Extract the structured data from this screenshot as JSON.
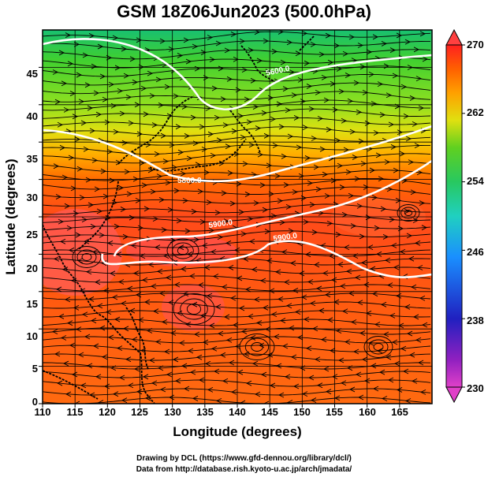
{
  "title": "GSM 18Z06Jun2023 (500.0hPa)",
  "x_axis": {
    "label": "Longitude (degrees)",
    "ticks": [
      "110",
      "115",
      "120",
      "125",
      "130",
      "135",
      "140",
      "145",
      "150",
      "155",
      "160",
      "165"
    ]
  },
  "y_axis": {
    "label": "Latitude  (degrees)",
    "ticks": [
      "0",
      "5",
      "10",
      "15",
      "20",
      "25",
      "30",
      "35",
      "40",
      "45"
    ]
  },
  "colorbar": {
    "ticks": [
      "230",
      "238",
      "246",
      "254",
      "262",
      "270"
    ],
    "colors": [
      "#e040c8",
      "#9020c0",
      "#2020c0",
      "#1a8fff",
      "#20d0c0",
      "#28c860",
      "#40d020",
      "#a0e010",
      "#f0e010",
      "#ffa000",
      "#ff6000",
      "#ff2020"
    ]
  },
  "contours": [
    {
      "label": "5600.0"
    },
    {
      "label": "5800.0"
    },
    {
      "label": "5900.0"
    },
    {
      "label": "5900.0"
    }
  ],
  "credits": {
    "line1": "Drawing by DCL (https://www.gfd-dennou.org/library/dcl/)",
    "line2": "Data from http://database.rish.kyoto-u.ac.jp/arch/jmadata/"
  },
  "chart_data": {
    "type": "heatmap",
    "title": "GSM 18Z06Jun2023 (500.0hPa)",
    "xlabel": "Longitude (degrees)",
    "ylabel": "Latitude  (degrees)",
    "xlim": [
      110,
      170
    ],
    "ylim": [
      0,
      50
    ],
    "colorbar_range": [
      230,
      270
    ],
    "contour_levels": [
      5600,
      5800,
      5900
    ],
    "overlays": [
      "streamlines",
      "coastlines",
      "grid"
    ],
    "grid": true
  }
}
